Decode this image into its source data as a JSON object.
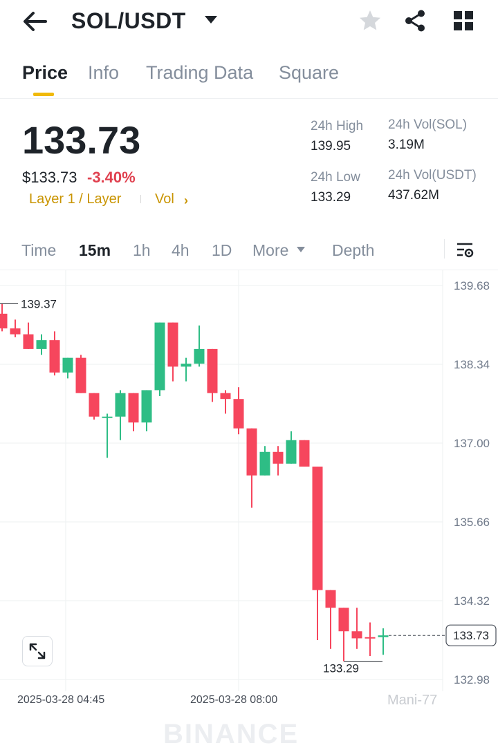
{
  "header": {
    "pair": "SOL/USDT",
    "icons": [
      "back-arrow-icon",
      "caret-down-icon",
      "star-icon",
      "share-icon",
      "grid-icon"
    ]
  },
  "tabs": [
    {
      "label": "Price",
      "active": true
    },
    {
      "label": "Info",
      "active": false
    },
    {
      "label": "Trading Data",
      "active": false
    },
    {
      "label": "Square",
      "active": false
    }
  ],
  "ticker": {
    "last_price": "133.73",
    "usd_price": "$133.73",
    "change": "-3.40%",
    "tag": "Layer 1 / Layer",
    "vol_link": "Vol",
    "chevron": "›"
  },
  "stats": {
    "high_label": "24h High",
    "high_value": "139.95",
    "low_label": "24h Low",
    "low_value": "133.29",
    "vol_sol_label": "24h Vol(SOL)",
    "vol_sol_value": "3.19M",
    "vol_usdt_label": "24h Vol(USDT)",
    "vol_usdt_value": "437.62M"
  },
  "timeframes": {
    "items": [
      {
        "label": "Time",
        "active": false
      },
      {
        "label": "15m",
        "active": true
      },
      {
        "label": "1h",
        "active": false
      },
      {
        "label": "4h",
        "active": false
      },
      {
        "label": "1D",
        "active": false
      },
      {
        "label": "More",
        "active": false
      },
      {
        "label": "Depth",
        "active": false
      }
    ]
  },
  "colors": {
    "up": "#2ebd85",
    "down": "#f6465d",
    "accent": "#f0b90b"
  },
  "watermark": "BINANCE",
  "credit": "Mani-77",
  "chart_data": {
    "type": "candlestick",
    "y_ticks": [
      "139.68",
      "138.34",
      "137.00",
      "135.66",
      "134.32",
      "132.98"
    ],
    "ylim": [
      132.65,
      139.9
    ],
    "x_labels": [
      "2025-03-28 04:45",
      "2025-03-28 08:00"
    ],
    "high_marker": "139.37",
    "low_marker": "133.29",
    "last_marker": "133.73",
    "grid": true,
    "candles": [
      {
        "o": 139.2,
        "h": 139.37,
        "c": 138.95,
        "l": 138.9
      },
      {
        "o": 138.95,
        "h": 139.1,
        "c": 138.85,
        "l": 138.8
      },
      {
        "o": 138.85,
        "h": 139.05,
        "c": 138.6,
        "l": 138.6
      },
      {
        "o": 138.6,
        "h": 138.85,
        "c": 138.75,
        "l": 138.5
      },
      {
        "o": 138.75,
        "h": 138.9,
        "c": 138.2,
        "l": 138.15
      },
      {
        "o": 138.2,
        "h": 138.45,
        "c": 138.45,
        "l": 138.1
      },
      {
        "o": 138.45,
        "h": 138.5,
        "c": 137.85,
        "l": 137.85
      },
      {
        "o": 137.85,
        "h": 137.85,
        "c": 137.45,
        "l": 137.4
      },
      {
        "o": 137.45,
        "h": 137.5,
        "c": 137.45,
        "l": 136.75
      },
      {
        "o": 137.45,
        "h": 137.9,
        "c": 137.85,
        "l": 137.05
      },
      {
        "o": 137.85,
        "h": 137.85,
        "c": 137.35,
        "l": 137.2
      },
      {
        "o": 137.35,
        "h": 137.9,
        "c": 137.9,
        "l": 137.2
      },
      {
        "o": 137.9,
        "h": 139.05,
        "c": 139.05,
        "l": 137.8
      },
      {
        "o": 139.05,
        "h": 139.05,
        "c": 138.3,
        "l": 138.05
      },
      {
        "o": 138.3,
        "h": 138.45,
        "c": 138.35,
        "l": 138.05
      },
      {
        "o": 138.35,
        "h": 139.0,
        "c": 138.6,
        "l": 138.3
      },
      {
        "o": 138.6,
        "h": 138.6,
        "c": 137.85,
        "l": 137.7
      },
      {
        "o": 137.85,
        "h": 137.9,
        "c": 137.75,
        "l": 137.5
      },
      {
        "o": 137.75,
        "h": 137.95,
        "c": 137.25,
        "l": 137.15
      },
      {
        "o": 137.25,
        "h": 137.25,
        "c": 136.45,
        "l": 135.9
      },
      {
        "o": 136.45,
        "h": 136.95,
        "c": 136.85,
        "l": 136.45
      },
      {
        "o": 136.85,
        "h": 136.95,
        "c": 136.65,
        "l": 136.45
      },
      {
        "o": 136.65,
        "h": 137.2,
        "c": 137.05,
        "l": 136.65
      },
      {
        "o": 137.05,
        "h": 137.05,
        "c": 136.6,
        "l": 136.6
      },
      {
        "o": 136.6,
        "h": 136.6,
        "c": 134.5,
        "l": 133.65
      },
      {
        "o": 134.5,
        "h": 134.5,
        "c": 134.2,
        "l": 133.5
      },
      {
        "o": 134.2,
        "h": 134.2,
        "c": 133.8,
        "l": 133.29
      },
      {
        "o": 133.8,
        "h": 134.2,
        "c": 133.68,
        "l": 133.5
      },
      {
        "o": 133.7,
        "h": 133.95,
        "c": 133.68,
        "l": 133.38
      },
      {
        "o": 133.7,
        "h": 133.85,
        "c": 133.73,
        "l": 133.4
      }
    ]
  }
}
